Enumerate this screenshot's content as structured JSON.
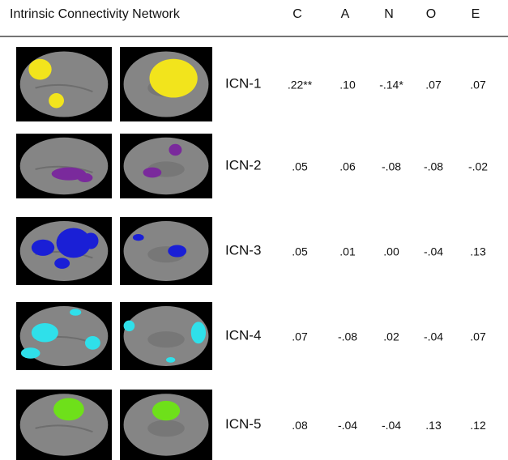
{
  "table": {
    "header": [
      "Intrinsic Connectivity Network",
      "C",
      "A",
      "N",
      "O",
      "E"
    ],
    "rows": [
      {
        "label": "ICN-1",
        "color": "#f2e41c",
        "values": [
          ".22**",
          ".10",
          "-.14*",
          ".07",
          ".07"
        ]
      },
      {
        "label": "ICN-2",
        "color": "#7a2a9c",
        "values": [
          ".05",
          ".06",
          "-.08",
          "-.08",
          "-.02"
        ]
      },
      {
        "label": "ICN-3",
        "color": "#1a1fd6",
        "values": [
          ".05",
          ".01",
          ".00",
          "-.04",
          ".13"
        ]
      },
      {
        "label": "ICN-4",
        "color": "#2fe0ea",
        "values": [
          ".07",
          "-.08",
          ".02",
          "-.04",
          ".07"
        ]
      },
      {
        "label": "ICN-5",
        "color": "#6ee01a",
        "values": [
          ".08",
          "-.04",
          "-.04",
          ".13",
          ".12"
        ]
      }
    ]
  }
}
